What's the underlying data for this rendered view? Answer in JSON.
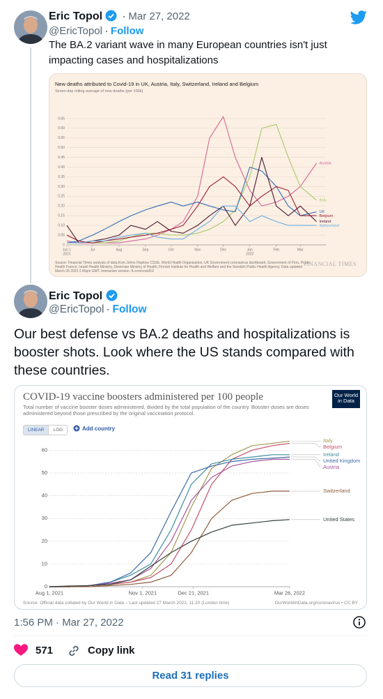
{
  "tweets": [
    {
      "name": "Eric Topol",
      "handle": "@EricTopol",
      "follow": "Follow",
      "date": "Mar 27, 2022",
      "text": "The BA.2 variant wave in many European countries isn't just impacting cases and hospitalizations"
    },
    {
      "name": "Eric Topol",
      "handle": "@EricTopol",
      "follow": "Follow",
      "text": "Our best defense vs BA.2 deaths and hospitalizations is booster shots. Look where the US stands compared with these countries."
    }
  ],
  "footer": {
    "timestamp": "1:56 PM · Mar 27, 2022",
    "likes": "571",
    "copy_link": "Copy link",
    "replies_button": "Read 31 replies"
  },
  "chart_data": [
    {
      "type": "line",
      "title": "New deaths attributed to Covid-19 in UK, Austria, Italy, Switzerland, Ireland and Belgium",
      "subtitle": "Seven-day rolling average of new deaths (per 100k)",
      "source": "Source: Financial Times analysis of data from Johns Hopkins CSSE, World Health Organization, UK Government coronavirus dashboard, Government of Peru, Public Health France, Israeli Health Ministry, Slovenian Ministry of Health, Finnish Institute for Health and Welfare and the Swedish Public Health Agency. Data updated March 25 2022 2.45pm GMT. Interactive version: ft.com/covid19",
      "publisher": "FINANCIAL TIMES",
      "x": [
        "2021-06-01",
        "2021-06-15",
        "2021-07-01",
        "2021-07-15",
        "2021-08-01",
        "2021-08-15",
        "2021-09-01",
        "2021-09-15",
        "2021-10-01",
        "2021-10-15",
        "2021-11-01",
        "2021-11-15",
        "2021-12-01",
        "2021-12-15",
        "2022-01-01",
        "2022-01-15",
        "2022-02-01",
        "2022-02-15",
        "2022-03-01",
        "2022-03-20"
      ],
      "xlim": [
        "2021-06-01",
        "2022-03-31"
      ],
      "xticks": [
        {
          "value": "2021-06-01",
          "label": "Jun 1"
        },
        {
          "value": "2021-07-01",
          "label": "Jul"
        },
        {
          "value": "2021-08-01",
          "label": "Aug"
        },
        {
          "value": "2021-09-01",
          "label": "Sep"
        },
        {
          "value": "2021-10-01",
          "label": "Oct"
        },
        {
          "value": "2021-11-01",
          "label": "Nov"
        },
        {
          "value": "2021-12-01",
          "label": "Dec"
        },
        {
          "value": "2022-01-01",
          "label": "Jan"
        },
        {
          "value": "2022-02-01",
          "label": "Feb"
        },
        {
          "value": "2022-03-01",
          "label": "Mar"
        }
      ],
      "xtick_years": [
        {
          "value": "2021-06-01",
          "label": "2021"
        },
        {
          "value": "2022-01-01",
          "label": "2022"
        }
      ],
      "ylim": [
        0,
        0.7
      ],
      "yticks": [
        0,
        0.05,
        {
          "value": 0.1,
          "label": "0.10"
        },
        0.15,
        {
          "value": 0.2,
          "label": "0.20"
        },
        0.25,
        {
          "value": 0.3,
          "label": "0.30"
        },
        0.35,
        {
          "value": 0.4,
          "label": "0.40"
        },
        0.45,
        {
          "value": 0.5,
          "label": "0.50"
        },
        0.55,
        {
          "value": 0.6,
          "label": "0.60"
        },
        0.65
      ],
      "grid": true,
      "series": [
        {
          "name": "Austria",
          "color": "#d0679a",
          "values": [
            0.02,
            0.01,
            0.01,
            0.01,
            0.01,
            0.02,
            0.03,
            0.05,
            0.08,
            0.12,
            0.25,
            0.55,
            0.66,
            0.45,
            0.28,
            0.2,
            0.22,
            0.25,
            0.3,
            0.42
          ]
        },
        {
          "name": "Italy",
          "color": "#a8c96c",
          "values": [
            0.05,
            0.02,
            0.01,
            0.01,
            0.02,
            0.04,
            0.06,
            0.06,
            0.05,
            0.05,
            0.06,
            0.08,
            0.12,
            0.18,
            0.35,
            0.6,
            0.62,
            0.45,
            0.3,
            0.23
          ]
        },
        {
          "name": "UK",
          "color": "#2f6fb5",
          "values": [
            0.01,
            0.02,
            0.05,
            0.08,
            0.12,
            0.15,
            0.18,
            0.2,
            0.22,
            0.2,
            0.22,
            0.2,
            0.18,
            0.17,
            0.4,
            0.38,
            0.3,
            0.2,
            0.15,
            0.17
          ]
        },
        {
          "name": "Belgium",
          "color": "#9c1f3a",
          "values": [
            0.05,
            0.02,
            0.01,
            0.02,
            0.03,
            0.04,
            0.05,
            0.06,
            0.08,
            0.1,
            0.2,
            0.3,
            0.35,
            0.3,
            0.2,
            0.25,
            0.3,
            0.28,
            0.15,
            0.15
          ]
        },
        {
          "name": "Ireland",
          "color": "#4a1630",
          "values": [
            0.1,
            0.01,
            0.02,
            0.03,
            0.05,
            0.1,
            0.08,
            0.12,
            0.07,
            0.06,
            0.1,
            0.15,
            0.2,
            0.1,
            0.2,
            0.45,
            0.2,
            0.15,
            0.2,
            0.12
          ]
        },
        {
          "name": "Switzerland",
          "color": "#6aaee0",
          "values": [
            0.01,
            0.01,
            0.02,
            0.02,
            0.04,
            0.05,
            0.06,
            0.04,
            0.03,
            0.03,
            0.08,
            0.12,
            0.2,
            0.2,
            0.12,
            0.15,
            0.12,
            0.1,
            0.1,
            0.1
          ]
        }
      ]
    },
    {
      "type": "line",
      "title": "COVID-19 vaccine boosters administered per 100 people",
      "subtitle": "Total number of vaccine booster doses administered, divided by the total population of the country. Booster doses are doses administered beyond those prescribed by the original vaccination protocol.",
      "logo": "Our World in Data",
      "scale_buttons": [
        "LINEAR",
        "LOG"
      ],
      "log_scale": false,
      "add_country": "Add country",
      "source": "Source: Official data collated by Our World in Data – Last updated 27 March 2022, 11:20 (London time)",
      "source_url": "OurWorldInData.org/coronavirus • CC BY",
      "x": [
        "2021-08-01",
        "2021-08-21",
        "2021-09-10",
        "2021-09-30",
        "2021-10-20",
        "2021-11-09",
        "2021-11-29",
        "2021-12-19",
        "2022-01-08",
        "2022-01-28",
        "2022-02-17",
        "2022-03-09",
        "2022-03-26"
      ],
      "xlim": [
        "2021-08-01",
        "2022-03-26"
      ],
      "xticks": [
        {
          "value": "2021-08-01",
          "label": "Aug 1, 2021"
        },
        {
          "value": "2021-11-01",
          "label": "Nov 1, 2021"
        },
        {
          "value": "2021-12-21",
          "label": "Dec 21, 2021"
        },
        {
          "value": "2022-03-26",
          "label": "Mar 26, 2022"
        }
      ],
      "ylim": [
        0,
        65
      ],
      "yticks": [
        0,
        10,
        20,
        30,
        40,
        50,
        60
      ],
      "grid": true,
      "series": [
        {
          "name": "Italy",
          "color": "#a39a55",
          "values": [
            0,
            0,
            0.5,
            1,
            2,
            5,
            15,
            35,
            52,
            58,
            62,
            63,
            64
          ]
        },
        {
          "name": "Belgium",
          "color": "#c4506a",
          "values": [
            0,
            0,
            0.5,
            1,
            2,
            4,
            10,
            25,
            45,
            56,
            60,
            62,
            63
          ]
        },
        {
          "name": "Ireland",
          "color": "#3f8d9e",
          "values": [
            0,
            0,
            0.5,
            2,
            5,
            10,
            25,
            45,
            54,
            56,
            57,
            58,
            58
          ]
        },
        {
          "name": "United Kingdom",
          "color": "#3c6aa6",
          "values": [
            0,
            0,
            0.5,
            2,
            6,
            15,
            33,
            50,
            53,
            55,
            56,
            56.5,
            57
          ]
        },
        {
          "name": "Austria",
          "color": "#a4529a",
          "values": [
            0,
            0,
            0.5,
            1.5,
            3,
            8,
            20,
            38,
            48,
            53,
            55,
            56,
            56
          ]
        },
        {
          "name": "Switzerland",
          "color": "#8e5a3b",
          "values": [
            0,
            0,
            0,
            0.5,
            1,
            2,
            5,
            15,
            30,
            38,
            41,
            42,
            42
          ]
        },
        {
          "name": "United States",
          "color": "#34403a",
          "values": [
            0,
            0.3,
            0.5,
            1,
            3,
            9,
            15,
            20,
            24,
            27,
            28,
            29,
            29.5
          ]
        }
      ]
    }
  ]
}
